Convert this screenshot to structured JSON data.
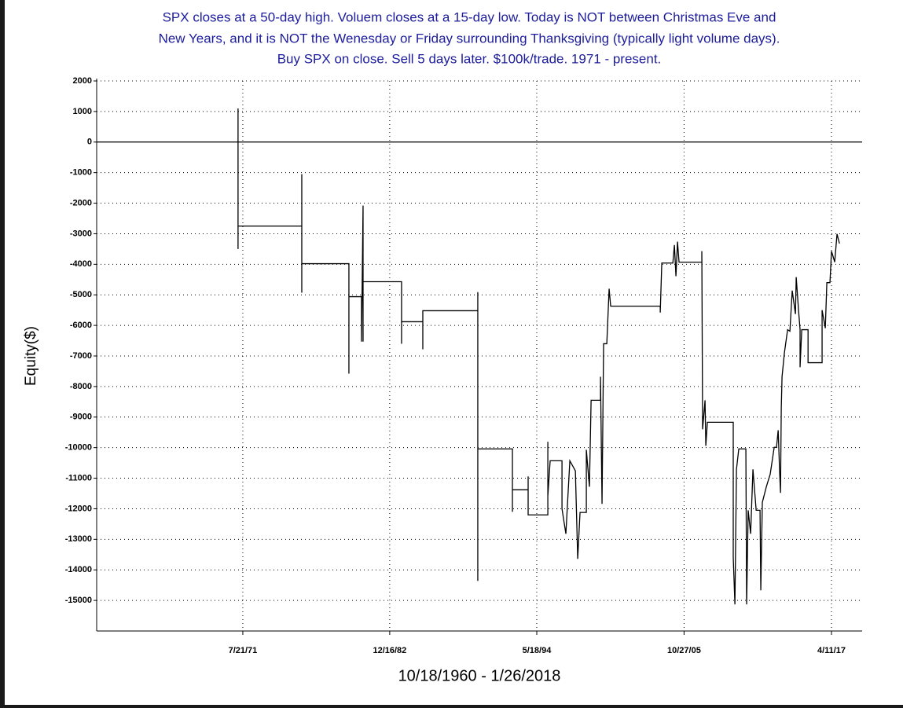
{
  "chart_data": {
    "type": "line",
    "title": [
      "SPX closes at a 50-day high. Voluem closes at a 15-day low. Today is NOT between Christmas Eve and",
      "New Years, and it is NOT the Wenesday or Friday surrounding Thanksgiving (typically light volume days).",
      "Buy SPX on close. Sell 5 days later. $100k/trade. 1971 - present."
    ],
    "xlabel": "10/18/1960 - 1/26/2018",
    "ylabel": "Equity($)",
    "xlim": [
      1960.2,
      2019.65
    ],
    "ylim": [
      -16000,
      2000
    ],
    "xticks": [
      {
        "value": 1971.55,
        "label": "7/21/71"
      },
      {
        "value": 1982.96,
        "label": "12/16/82"
      },
      {
        "value": 1994.38,
        "label": "5/18/94"
      },
      {
        "value": 2005.82,
        "label": "10/27/05"
      },
      {
        "value": 2017.27,
        "label": "4/11/17"
      }
    ],
    "yticks": [
      2000,
      1000,
      0,
      -1000,
      -2000,
      -3000,
      -4000,
      -5000,
      -6000,
      -7000,
      -8000,
      -9000,
      -10000,
      -11000,
      -12000,
      -13000,
      -14000,
      -15000
    ],
    "grid": true,
    "color": "#000000",
    "x": [
      1971.18,
      1971.18,
      1971.18,
      1976.13,
      1976.13,
      1976.13,
      1976.13,
      1979.79,
      1979.79,
      1979.79,
      1980.77,
      1980.77,
      1980.89,
      1980.89,
      1980.89,
      1983.88,
      1983.88,
      1983.88,
      1985.53,
      1985.53,
      1985.53,
      1989.8,
      1989.8,
      1989.8,
      1989.8,
      1992.49,
      1992.49,
      1992.49,
      1993.71,
      1993.71,
      1993.71,
      1995.24,
      1995.24,
      1995.24,
      1995.42,
      1996.34,
      1996.34,
      1996.64,
      1996.95,
      1997.38,
      1997.56,
      1997.74,
      1998.23,
      1998.23,
      1998.47,
      1998.6,
      1999.33,
      1999.33,
      1999.45,
      1999.57,
      1999.82,
      2000.0,
      2000.12,
      2003.97,
      2003.97,
      2004.09,
      2004.95,
      2005.07,
      2005.19,
      2005.31,
      2005.43,
      2007.2,
      2007.2,
      2007.26,
      2007.45,
      2007.51,
      2007.63,
      2009.64,
      2009.64,
      2009.77,
      2009.89,
      2010.07,
      2010.62,
      2010.68,
      2010.8,
      2010.99,
      2011.17,
      2011.42,
      2011.72,
      2011.78,
      2011.9,
      2012.21,
      2012.51,
      2012.82,
      2013.0,
      2013.13,
      2013.25,
      2013.31,
      2013.37,
      2013.43,
      2013.61,
      2013.86,
      2014.04,
      2014.22,
      2014.47,
      2014.53,
      2014.71,
      2014.83,
      2014.83,
      2014.96,
      2015.45,
      2015.45,
      2016.54,
      2016.54,
      2016.79,
      2016.91,
      2017.15,
      2017.27,
      2017.52,
      2017.7,
      2017.89
    ],
    "values": [
      1100,
      -3500,
      -2750,
      -2750,
      -1050,
      -4930,
      -3980,
      -3980,
      -7580,
      -5060,
      -5060,
      -6530,
      -2080,
      -6530,
      -4570,
      -4570,
      -6600,
      -5880,
      -5880,
      -6780,
      -5520,
      -5520,
      -4910,
      -14360,
      -10040,
      -10040,
      -12100,
      -11380,
      -11380,
      -10940,
      -12200,
      -12200,
      -9810,
      -11590,
      -10430,
      -10430,
      -12000,
      -12820,
      -10430,
      -10760,
      -13640,
      -12120,
      -12120,
      -10070,
      -11280,
      -8450,
      -8450,
      -7680,
      -11840,
      -6600,
      -6600,
      -4800,
      -5370,
      -5370,
      -5580,
      -3960,
      -3960,
      -3370,
      -4390,
      -3260,
      -3930,
      -3930,
      -3570,
      -9400,
      -8450,
      -9940,
      -9170,
      -9170,
      -13590,
      -15130,
      -10710,
      -10040,
      -10040,
      -15130,
      -12050,
      -12820,
      -10710,
      -12050,
      -12050,
      -14670,
      -11790,
      -11280,
      -10870,
      -9990,
      -9990,
      -9430,
      -10890,
      -11480,
      -8710,
      -7680,
      -6910,
      -6140,
      -6190,
      -4860,
      -5630,
      -4420,
      -5500,
      -6140,
      -7370,
      -6140,
      -6140,
      -7220,
      -7220,
      -5500,
      -6090,
      -4600,
      -4600,
      -3570,
      -3930,
      -3010,
      -3320
    ]
  }
}
